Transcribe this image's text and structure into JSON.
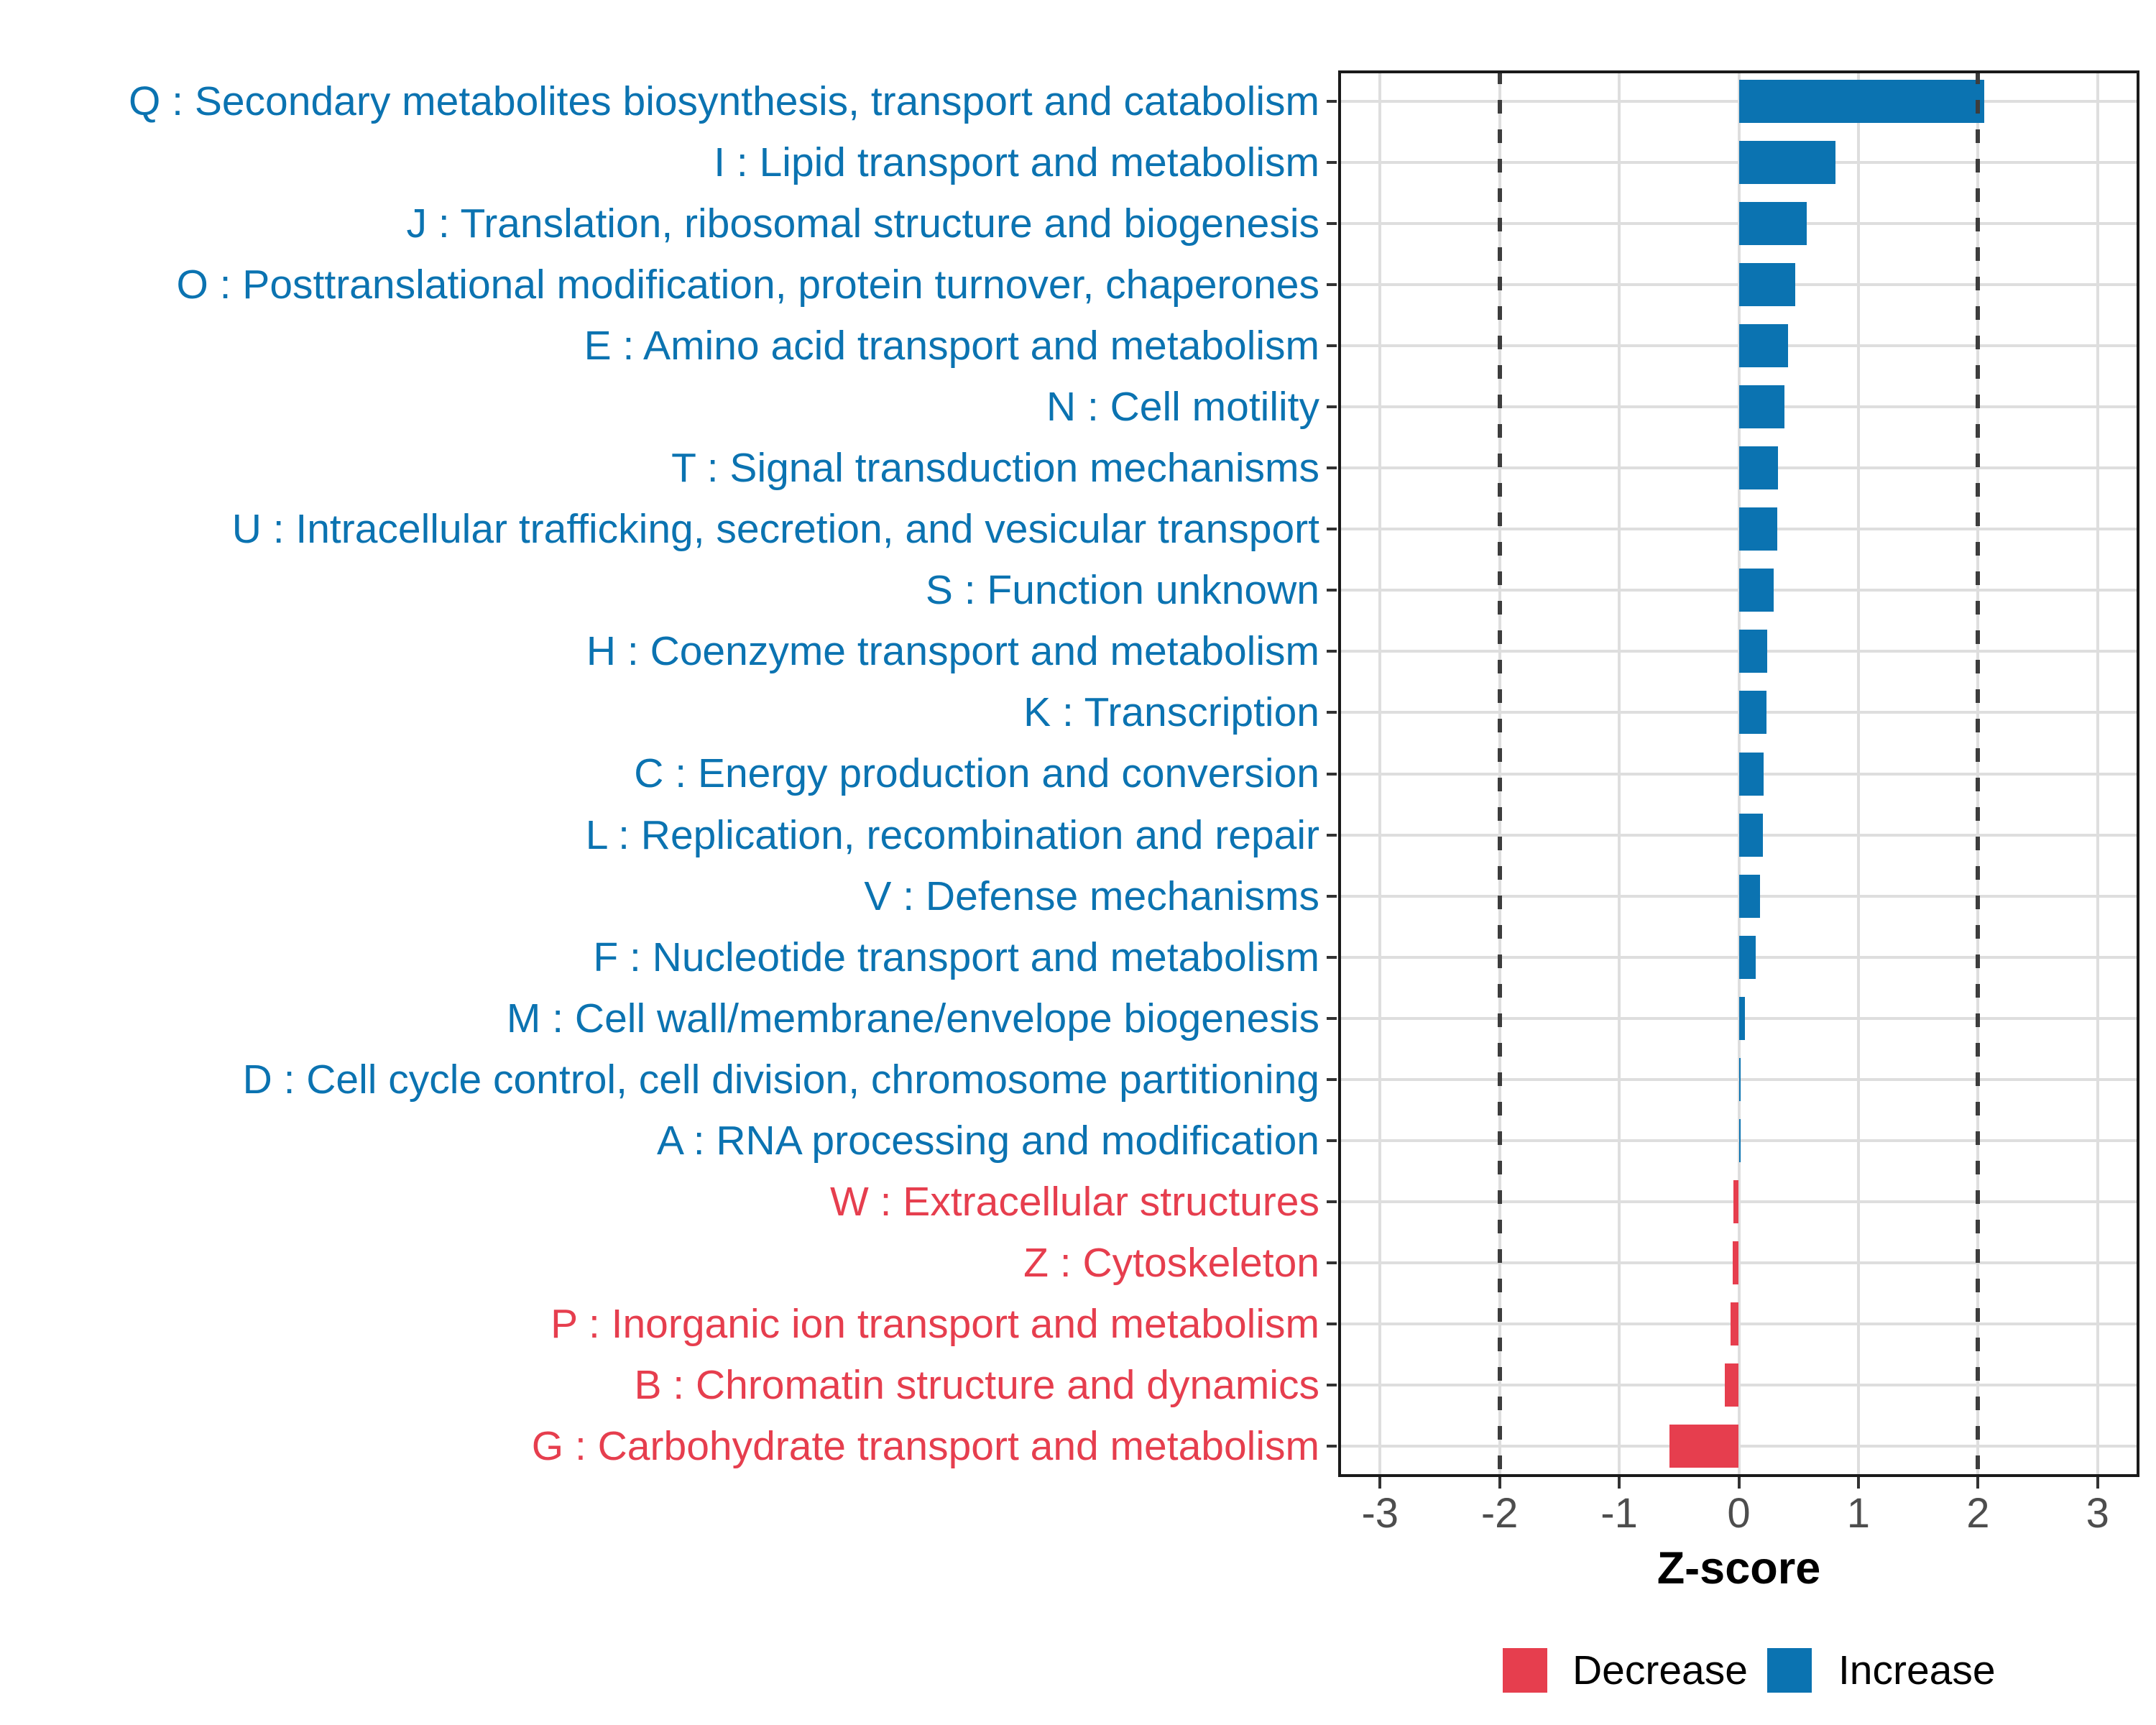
{
  "chart_data": {
    "type": "bar",
    "orientation": "horizontal-diverging",
    "title": "",
    "xlabel": "Z-score",
    "ylabel": "",
    "xlim": [
      -3.35,
      3.35
    ],
    "x_tick_values": [
      -3,
      -2,
      -1,
      0,
      1,
      2,
      3
    ],
    "x_tick_labels": [
      "-3",
      "-2",
      "-1",
      "0",
      "1",
      "2",
      "3"
    ],
    "reference_lines_x": [
      -2,
      2
    ],
    "grid": true,
    "bar_fill_fraction": 0.7,
    "colors": {
      "increase": "#0b73b1",
      "decrease": "#e63e4e",
      "gridline": "#dedede",
      "refline": "#3d3d3d",
      "tick_mark": "#333333",
      "tick_label": "#4d4d4d",
      "panel_border": "#1a1a1a"
    },
    "legend": {
      "position": "bottom",
      "items": [
        {
          "label": "Decrease",
          "key": "decrease"
        },
        {
          "label": "Increase",
          "key": "increase"
        }
      ]
    },
    "bars": [
      {
        "code": "Q",
        "label": "Q : Secondary metabolites biosynthesis, transport and catabolism",
        "value": 2.05,
        "direction": "increase"
      },
      {
        "code": "I",
        "label": "I : Lipid transport and metabolism",
        "value": 0.81,
        "direction": "increase"
      },
      {
        "code": "J",
        "label": "J : Translation, ribosomal structure and biogenesis",
        "value": 0.57,
        "direction": "increase"
      },
      {
        "code": "O",
        "label": "O : Posttranslational modification, protein turnover, chaperones",
        "value": 0.47,
        "direction": "increase"
      },
      {
        "code": "E",
        "label": "E : Amino acid transport and metabolism",
        "value": 0.41,
        "direction": "increase"
      },
      {
        "code": "N",
        "label": "N : Cell motility",
        "value": 0.38,
        "direction": "increase"
      },
      {
        "code": "T",
        "label": "T : Signal transduction mechanisms",
        "value": 0.33,
        "direction": "increase"
      },
      {
        "code": "U",
        "label": "U : Intracellular trafficking, secretion, and vesicular transport",
        "value": 0.32,
        "direction": "increase"
      },
      {
        "code": "S",
        "label": "S : Function unknown",
        "value": 0.29,
        "direction": "increase"
      },
      {
        "code": "H",
        "label": "H : Coenzyme transport and metabolism",
        "value": 0.24,
        "direction": "increase"
      },
      {
        "code": "K",
        "label": "K : Transcription",
        "value": 0.23,
        "direction": "increase"
      },
      {
        "code": "C",
        "label": "C : Energy production and conversion",
        "value": 0.21,
        "direction": "increase"
      },
      {
        "code": "L",
        "label": "L : Replication, recombination and repair",
        "value": 0.2,
        "direction": "increase"
      },
      {
        "code": "V",
        "label": "V : Defense mechanisms",
        "value": 0.18,
        "direction": "increase"
      },
      {
        "code": "F",
        "label": "F : Nucleotide transport and metabolism",
        "value": 0.14,
        "direction": "increase"
      },
      {
        "code": "M",
        "label": "M : Cell wall/membrane/envelope biogenesis",
        "value": 0.05,
        "direction": "increase"
      },
      {
        "code": "D",
        "label": "D : Cell cycle control, cell division, chromosome partitioning",
        "value": 0.015,
        "direction": "increase"
      },
      {
        "code": "A",
        "label": "A : RNA processing and modification",
        "value": 0.012,
        "direction": "increase"
      },
      {
        "code": "W",
        "label": "W : Extracellular structures",
        "value": -0.044,
        "direction": "decrease"
      },
      {
        "code": "Z",
        "label": "Z : Cytoskeleton",
        "value": -0.054,
        "direction": "decrease"
      },
      {
        "code": "P",
        "label": "P : Inorganic ion transport and metabolism",
        "value": -0.07,
        "direction": "decrease"
      },
      {
        "code": "B",
        "label": "B : Chromatin structure and dynamics",
        "value": -0.12,
        "direction": "decrease"
      },
      {
        "code": "G",
        "label": "G : Carbohydrate transport and metabolism",
        "value": -0.58,
        "direction": "decrease"
      }
    ]
  }
}
